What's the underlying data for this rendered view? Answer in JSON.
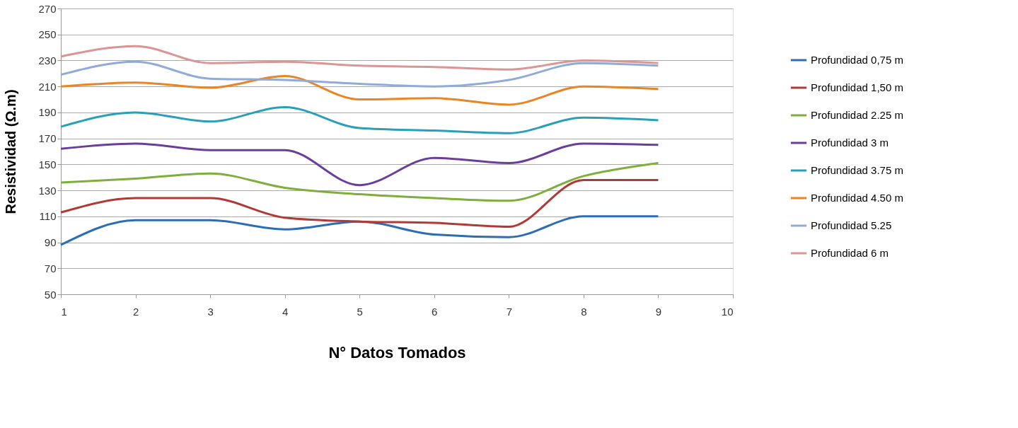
{
  "chart_data": {
    "type": "line",
    "xlabel": "N° Datos Tomados",
    "ylabel": "Resistividad (Ω.m)",
    "x": [
      1,
      2,
      3,
      4,
      5,
      6,
      7,
      8,
      9
    ],
    "series": [
      {
        "name": "Profundidad 0,75 m",
        "color": "#2e6db4",
        "values": [
          88,
          107,
          107,
          100,
          106,
          96,
          94,
          110,
          110
        ]
      },
      {
        "name": "Profundidad 1,50 m",
        "color": "#b03a36",
        "values": [
          113,
          124,
          124,
          109,
          106,
          105,
          102,
          138,
          138
        ]
      },
      {
        "name": "Profundidad 2.25 m",
        "color": "#7fae3c",
        "values": [
          136,
          139,
          143,
          132,
          127,
          124,
          122,
          141,
          151
        ]
      },
      {
        "name": "Profundidad 3 m",
        "color": "#6a3f9a",
        "values": [
          162,
          166,
          161,
          161,
          134,
          155,
          151,
          166,
          165
        ]
      },
      {
        "name": "Profundidad 3.75 m",
        "color": "#2a9fb8",
        "values": [
          179,
          190,
          183,
          194,
          178,
          176,
          174,
          186,
          184
        ]
      },
      {
        "name": "Profundidad 4.50 m",
        "color": "#e98526",
        "values": [
          210,
          213,
          209,
          218,
          200,
          201,
          196,
          210,
          208
        ]
      },
      {
        "name": "Profundidad 5.25",
        "color": "#91abd9",
        "values": [
          219,
          229,
          216,
          215,
          212,
          210,
          215,
          228,
          226
        ]
      },
      {
        "name": "Profundidad 6 m",
        "color": "#d99694",
        "values": [
          233,
          241,
          228,
          229,
          226,
          225,
          223,
          230,
          228
        ]
      }
    ],
    "xlim": [
      1,
      10
    ],
    "xticks": [
      1,
      2,
      3,
      4,
      5,
      6,
      7,
      8,
      9,
      10
    ],
    "ylim": [
      50,
      270
    ],
    "yticks": [
      50,
      70,
      90,
      110,
      130,
      150,
      170,
      190,
      210,
      230,
      250,
      270
    ],
    "grid": "y",
    "legend": "right",
    "marker": "none",
    "line_style": "solid"
  }
}
